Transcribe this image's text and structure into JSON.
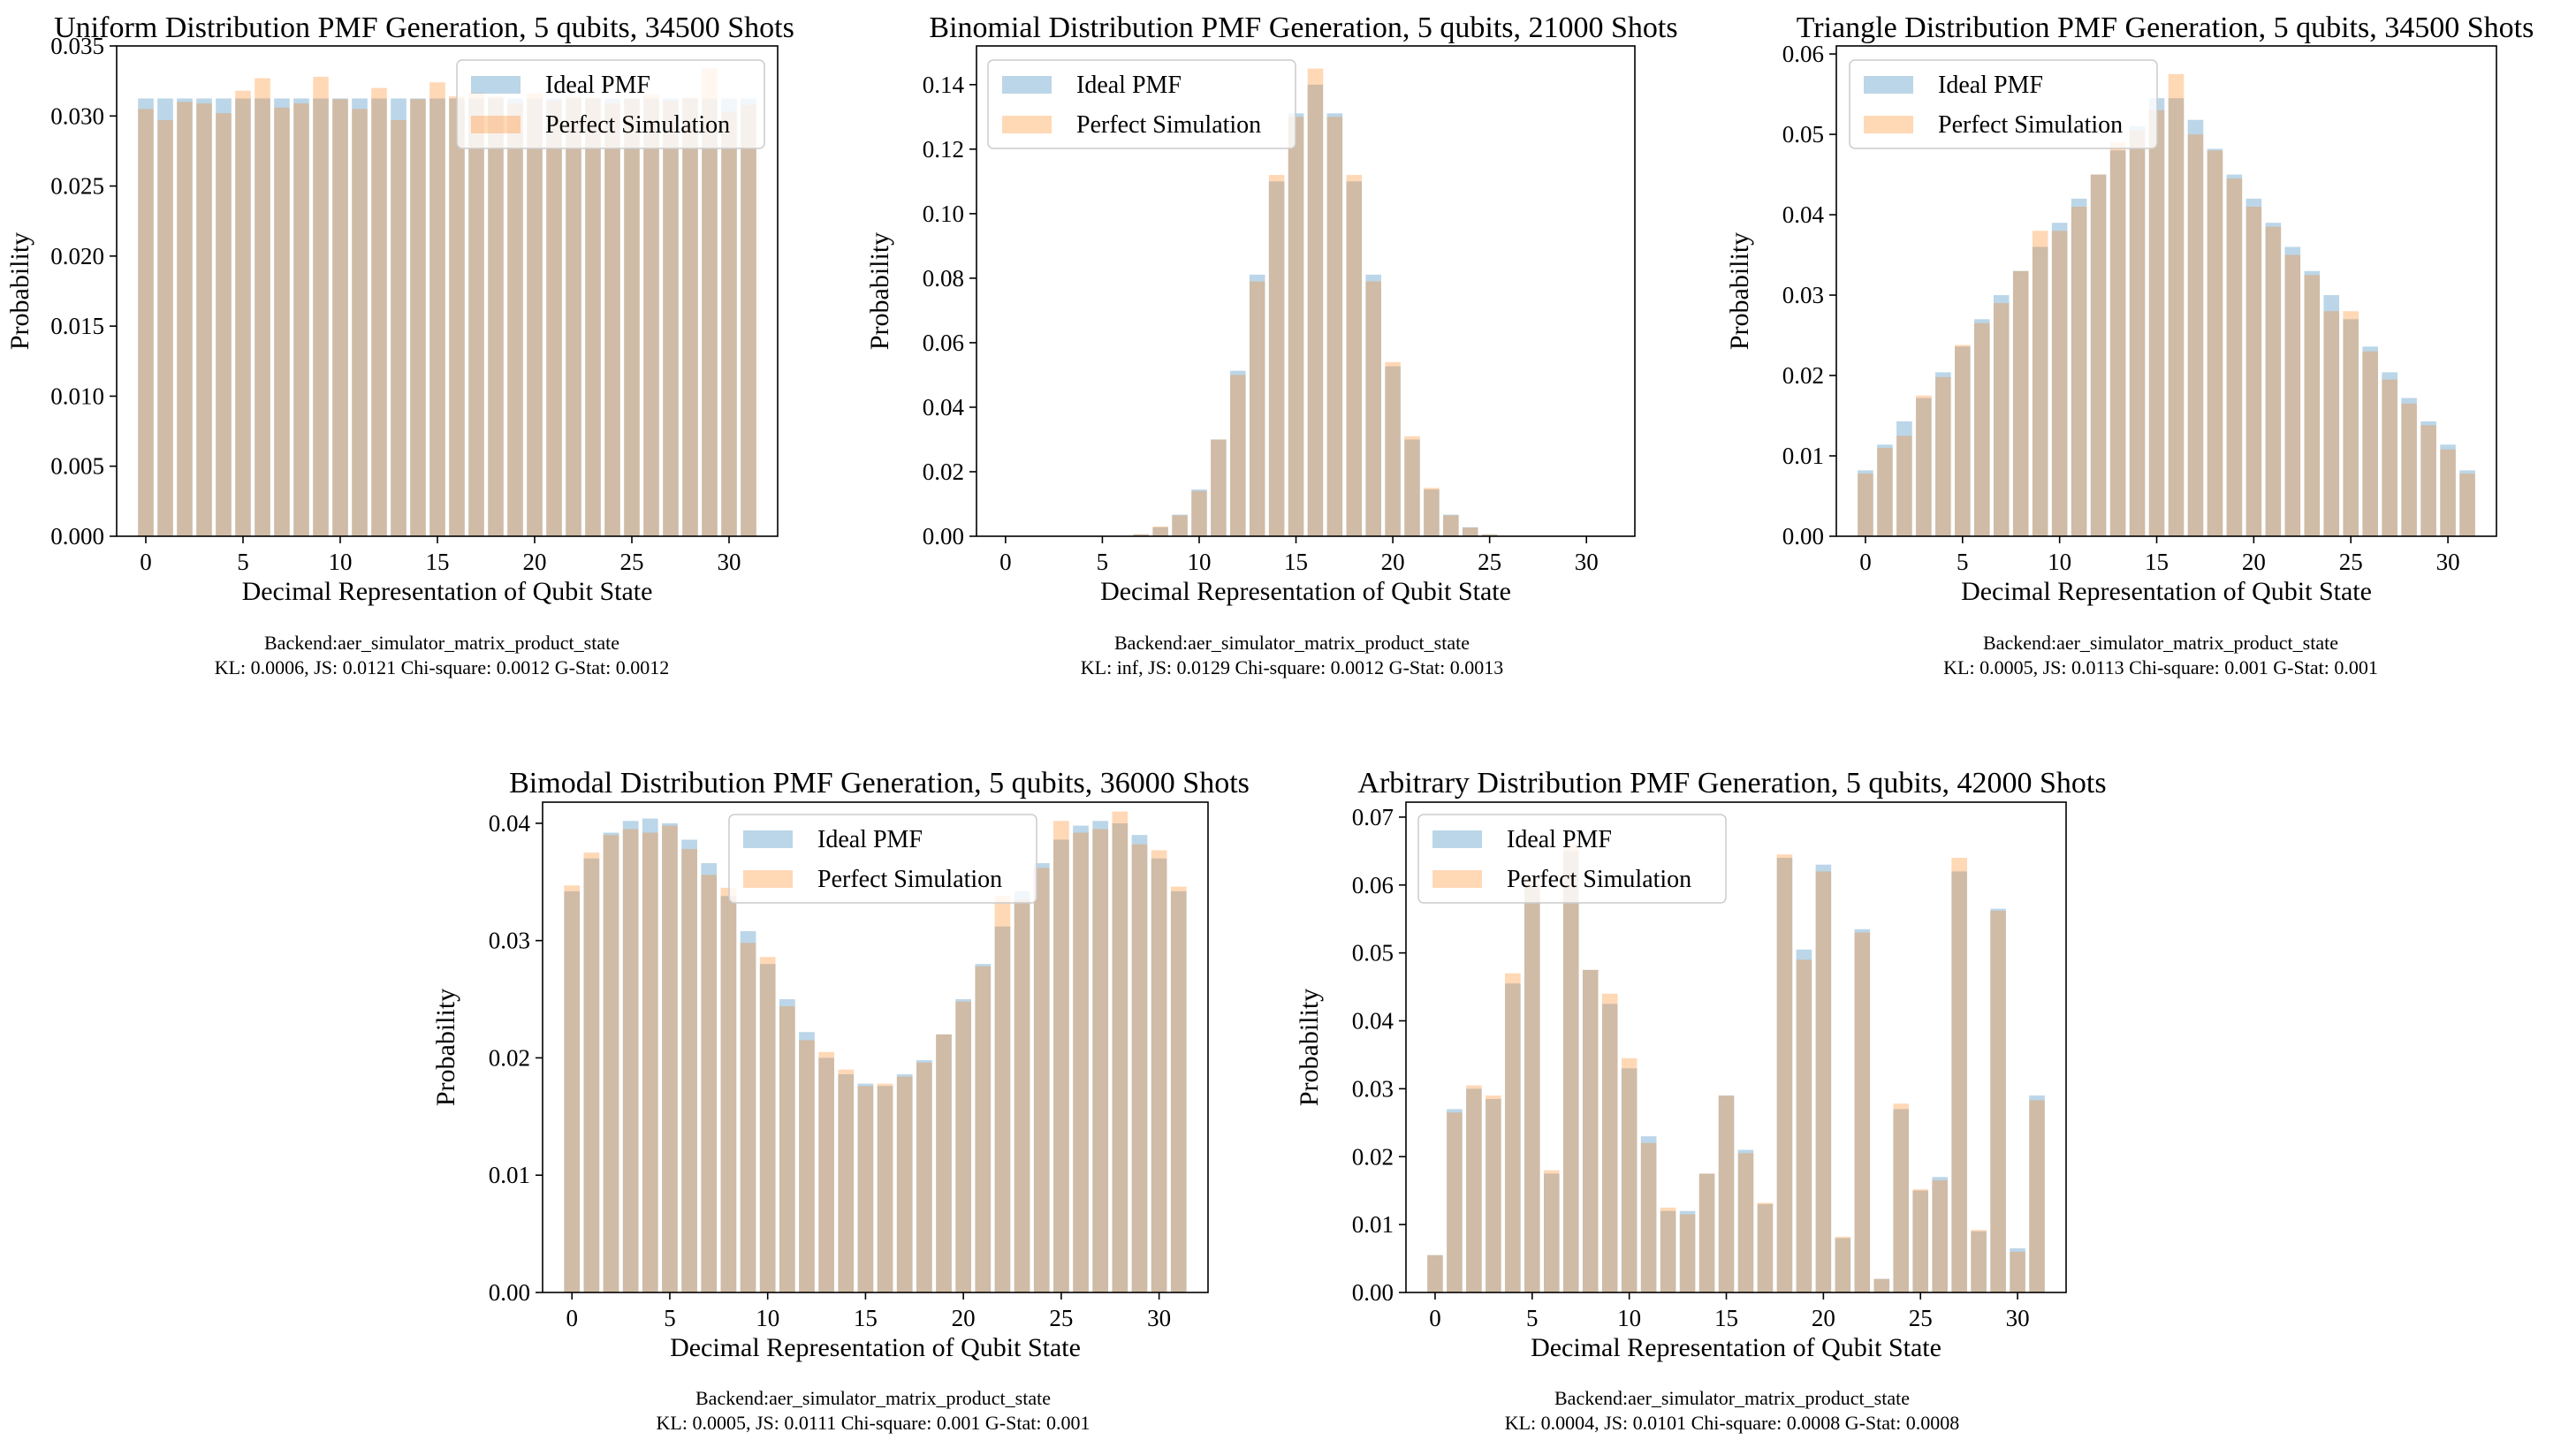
{
  "colors": {
    "ideal": "#1f77b4",
    "perfect": "#ff7f0e"
  },
  "chart_data": [
    {
      "type": "bar",
      "title": "Uniform Distribution PMF Generation, 5 qubits, 34500 Shots",
      "xlabel": "Decimal Representation of Qubit State",
      "ylabel": "Probability",
      "xlim": [
        -1.5,
        32.5
      ],
      "ylim": [
        0,
        0.035
      ],
      "yticks": [
        0,
        0.005,
        0.01,
        0.015,
        0.02,
        0.025,
        0.03,
        0.035
      ],
      "ytick_labels": [
        "0.000",
        "0.005",
        "0.010",
        "0.015",
        "0.020",
        "0.025",
        "0.030",
        "0.035"
      ],
      "xticks": [
        0,
        5,
        10,
        15,
        20,
        25,
        30
      ],
      "xtick_labels": [
        "0",
        "5",
        "10",
        "15",
        "20",
        "25",
        "30"
      ],
      "legend": [
        "Ideal PMF",
        "Perfect Simulation"
      ],
      "legend_loc": "top-right",
      "footer": [
        "Backend:aer_simulator_matrix_product_state",
        "KL: 0.0006, JS: 0.0121 Chi-square: 0.0012 G-Stat: 0.0012"
      ],
      "categories": [
        0,
        1,
        2,
        3,
        4,
        5,
        6,
        7,
        8,
        9,
        10,
        11,
        12,
        13,
        14,
        15,
        16,
        17,
        18,
        19,
        20,
        21,
        22,
        23,
        24,
        25,
        26,
        27,
        28,
        29,
        30,
        31
      ],
      "series": [
        {
          "name": "Ideal PMF",
          "values": [
            0.03125,
            0.03125,
            0.03125,
            0.03125,
            0.03125,
            0.03125,
            0.03125,
            0.03125,
            0.03125,
            0.03125,
            0.03125,
            0.03125,
            0.03125,
            0.03125,
            0.03125,
            0.03125,
            0.03125,
            0.03125,
            0.03125,
            0.03125,
            0.03125,
            0.03125,
            0.03125,
            0.03125,
            0.03125,
            0.03125,
            0.03125,
            0.03125,
            0.03125,
            0.03125,
            0.03125,
            0.03125
          ]
        },
        {
          "name": "Perfect Simulation",
          "values": [
            0.0305,
            0.0297,
            0.031,
            0.0309,
            0.0302,
            0.0318,
            0.0327,
            0.0306,
            0.0309,
            0.0328,
            0.0312,
            0.0305,
            0.032,
            0.0297,
            0.0312,
            0.0324,
            0.0314,
            0.0317,
            0.0314,
            0.0309,
            0.0316,
            0.0311,
            0.0314,
            0.0313,
            0.0309,
            0.0312,
            0.0315,
            0.0311,
            0.0313,
            0.0334,
            0.0303,
            0.0308
          ]
        }
      ]
    },
    {
      "type": "bar",
      "title": "Binomial Distribution PMF Generation, 5 qubits, 21000 Shots",
      "xlabel": "Decimal Representation of Qubit State",
      "ylabel": "Probability",
      "xlim": [
        -1.5,
        32.5
      ],
      "ylim": [
        0,
        0.152
      ],
      "yticks": [
        0,
        0.02,
        0.04,
        0.06,
        0.08,
        0.1,
        0.12,
        0.14
      ],
      "ytick_labels": [
        "0.00",
        "0.02",
        "0.04",
        "0.06",
        "0.08",
        "0.10",
        "0.12",
        "0.14"
      ],
      "xticks": [
        0,
        5,
        10,
        15,
        20,
        25,
        30
      ],
      "xtick_labels": [
        "0",
        "5",
        "10",
        "15",
        "20",
        "25",
        "30"
      ],
      "legend": [
        "Ideal PMF",
        "Perfect Simulation"
      ],
      "legend_loc": "top-left",
      "footer": [
        "Backend:aer_simulator_matrix_product_state",
        "KL: inf, JS: 0.0129 Chi-square: 0.0012 G-Stat: 0.0013"
      ],
      "categories": [
        0,
        1,
        2,
        3,
        4,
        5,
        6,
        7,
        8,
        9,
        10,
        11,
        12,
        13,
        14,
        15,
        16,
        17,
        18,
        19,
        20,
        21,
        22,
        23,
        24,
        25,
        26,
        27,
        28,
        29,
        30,
        31
      ],
      "series": [
        {
          "name": "Ideal PMF",
          "values": [
            0,
            0,
            0,
            0,
            0,
            0,
            0.0001,
            0.0006,
            0.0028,
            0.0067,
            0.0145,
            0.03,
            0.0513,
            0.0811,
            0.11,
            0.1311,
            0.14,
            0.1311,
            0.11,
            0.0811,
            0.0527,
            0.03,
            0.0145,
            0.0067,
            0.0028,
            0.0006,
            0.0001,
            0,
            0,
            0,
            0,
            0
          ]
        },
        {
          "name": "Perfect Simulation",
          "values": [
            0,
            0,
            0,
            0,
            0,
            0,
            0.0001,
            0.0006,
            0.003,
            0.0065,
            0.014,
            0.03,
            0.05,
            0.079,
            0.112,
            0.13,
            0.145,
            0.13,
            0.112,
            0.079,
            0.054,
            0.031,
            0.015,
            0.0065,
            0.0027,
            0.0005,
            0.0001,
            0,
            0,
            0,
            0,
            0
          ]
        }
      ]
    },
    {
      "type": "bar",
      "title": "Triangle Distribution PMF Generation, 5 qubits, 34500 Shots",
      "xlabel": "Decimal Representation of Qubit State",
      "ylabel": "Probability",
      "xlim": [
        -1.5,
        32.5
      ],
      "ylim": [
        0,
        0.061
      ],
      "yticks": [
        0,
        0.01,
        0.02,
        0.03,
        0.04,
        0.05,
        0.06
      ],
      "ytick_labels": [
        "0.00",
        "0.01",
        "0.02",
        "0.03",
        "0.04",
        "0.05",
        "0.06"
      ],
      "xticks": [
        0,
        5,
        10,
        15,
        20,
        25,
        30
      ],
      "xtick_labels": [
        "0",
        "5",
        "10",
        "15",
        "20",
        "25",
        "30"
      ],
      "legend": [
        "Ideal PMF",
        "Perfect Simulation"
      ],
      "legend_loc": "top-left",
      "footer": [
        "Backend:aer_simulator_matrix_product_state",
        "KL: 0.0005, JS: 0.0113 Chi-square: 0.001 G-Stat: 0.001"
      ],
      "categories": [
        0,
        1,
        2,
        3,
        4,
        5,
        6,
        7,
        8,
        9,
        10,
        11,
        12,
        13,
        14,
        15,
        16,
        17,
        18,
        19,
        20,
        21,
        22,
        23,
        24,
        25,
        26,
        27,
        28,
        29,
        30,
        31
      ],
      "series": [
        {
          "name": "Ideal PMF",
          "values": [
            0.0082,
            0.0114,
            0.0143,
            0.0172,
            0.0204,
            0.0236,
            0.027,
            0.03,
            0.033,
            0.036,
            0.039,
            0.042,
            0.045,
            0.048,
            0.051,
            0.0545,
            0.0545,
            0.0518,
            0.0482,
            0.045,
            0.042,
            0.039,
            0.036,
            0.033,
            0.03,
            0.027,
            0.0236,
            0.0204,
            0.0172,
            0.0143,
            0.0114,
            0.0082
          ]
        },
        {
          "name": "Perfect Simulation",
          "values": [
            0.0078,
            0.011,
            0.0125,
            0.0175,
            0.0198,
            0.0238,
            0.0265,
            0.029,
            0.033,
            0.038,
            0.038,
            0.041,
            0.045,
            0.049,
            0.0505,
            0.053,
            0.0575,
            0.05,
            0.048,
            0.0445,
            0.041,
            0.0385,
            0.035,
            0.0325,
            0.028,
            0.028,
            0.023,
            0.0195,
            0.0165,
            0.0138,
            0.0108,
            0.0078
          ]
        }
      ]
    },
    {
      "type": "bar",
      "title": "Bimodal Distribution PMF Generation, 5 qubits, 36000 Shots",
      "xlabel": "Decimal Representation of Qubit State",
      "ylabel": "Probability",
      "xlim": [
        -1.5,
        32.5
      ],
      "ylim": [
        0,
        0.0418
      ],
      "yticks": [
        0,
        0.01,
        0.02,
        0.03,
        0.04
      ],
      "ytick_labels": [
        "0.00",
        "0.01",
        "0.02",
        "0.03",
        "0.04"
      ],
      "xticks": [
        0,
        5,
        10,
        15,
        20,
        25,
        30
      ],
      "xtick_labels": [
        "0",
        "5",
        "10",
        "15",
        "20",
        "25",
        "30"
      ],
      "legend": [
        "Ideal PMF",
        "Perfect Simulation"
      ],
      "legend_loc": "top-center",
      "footer": [
        "Backend:aer_simulator_matrix_product_state",
        "KL: 0.0005, JS: 0.0111 Chi-square: 0.001 G-Stat: 0.001"
      ],
      "categories": [
        0,
        1,
        2,
        3,
        4,
        5,
        6,
        7,
        8,
        9,
        10,
        11,
        12,
        13,
        14,
        15,
        16,
        17,
        18,
        19,
        20,
        21,
        22,
        23,
        24,
        25,
        26,
        27,
        28,
        29,
        30,
        31
      ],
      "series": [
        {
          "name": "Ideal PMF",
          "values": [
            0.0342,
            0.037,
            0.0392,
            0.0402,
            0.0404,
            0.04,
            0.0386,
            0.0366,
            0.0338,
            0.0308,
            0.028,
            0.025,
            0.0222,
            0.02,
            0.0186,
            0.0178,
            0.0176,
            0.0186,
            0.0198,
            0.022,
            0.025,
            0.028,
            0.0312,
            0.0342,
            0.0366,
            0.0386,
            0.0398,
            0.0402,
            0.04,
            0.039,
            0.037,
            0.0342
          ]
        },
        {
          "name": "Perfect Simulation",
          "values": [
            0.0347,
            0.0375,
            0.039,
            0.0395,
            0.0392,
            0.0398,
            0.0378,
            0.0356,
            0.0345,
            0.0298,
            0.0286,
            0.0244,
            0.0215,
            0.0205,
            0.019,
            0.0176,
            0.0178,
            0.0184,
            0.0196,
            0.022,
            0.0248,
            0.0278,
            0.0338,
            0.0335,
            0.0362,
            0.0402,
            0.0392,
            0.0395,
            0.041,
            0.0382,
            0.0377,
            0.0346
          ]
        }
      ]
    },
    {
      "type": "bar",
      "title": "Arbitrary Distribution PMF Generation, 5 qubits, 42000 Shots",
      "xlabel": "Decimal Representation of Qubit State",
      "ylabel": "Probability",
      "xlim": [
        -1.5,
        32.5
      ],
      "ylim": [
        0,
        0.0722
      ],
      "yticks": [
        0,
        0.01,
        0.02,
        0.03,
        0.04,
        0.05,
        0.06,
        0.07
      ],
      "ytick_labels": [
        "0.00",
        "0.01",
        "0.02",
        "0.03",
        "0.04",
        "0.05",
        "0.06",
        "0.07"
      ],
      "xticks": [
        0,
        5,
        10,
        15,
        20,
        25,
        30
      ],
      "xtick_labels": [
        "0",
        "5",
        "10",
        "15",
        "20",
        "25",
        "30"
      ],
      "legend": [
        "Ideal PMF",
        "Perfect Simulation"
      ],
      "legend_loc": "top-left",
      "footer": [
        "Backend:aer_simulator_matrix_product_state",
        "KL: 0.0004, JS: 0.0101 Chi-square: 0.0008 G-Stat: 0.0008"
      ],
      "categories": [
        0,
        1,
        2,
        3,
        4,
        5,
        6,
        7,
        8,
        9,
        10,
        11,
        12,
        13,
        14,
        15,
        16,
        17,
        18,
        19,
        20,
        21,
        22,
        23,
        24,
        25,
        26,
        27,
        28,
        29,
        30,
        31
      ],
      "series": [
        {
          "name": "Ideal PMF",
          "values": [
            0.0055,
            0.027,
            0.03,
            0.0285,
            0.0455,
            0.06,
            0.0175,
            0.065,
            0.0475,
            0.0425,
            0.033,
            0.023,
            0.012,
            0.012,
            0.0175,
            0.029,
            0.021,
            0.013,
            0.064,
            0.0505,
            0.063,
            0.008,
            0.0535,
            0.002,
            0.027,
            0.015,
            0.017,
            0.062,
            0.009,
            0.0565,
            0.0065,
            0.029
          ]
        },
        {
          "name": "Perfect Simulation",
          "values": [
            0.0055,
            0.0265,
            0.0305,
            0.029,
            0.047,
            0.061,
            0.018,
            0.066,
            0.0475,
            0.044,
            0.0345,
            0.022,
            0.0125,
            0.0115,
            0.0175,
            0.029,
            0.0205,
            0.0132,
            0.0645,
            0.049,
            0.062,
            0.0082,
            0.053,
            0.002,
            0.0278,
            0.0152,
            0.0165,
            0.064,
            0.0092,
            0.0562,
            0.006,
            0.0283
          ]
        }
      ]
    }
  ]
}
